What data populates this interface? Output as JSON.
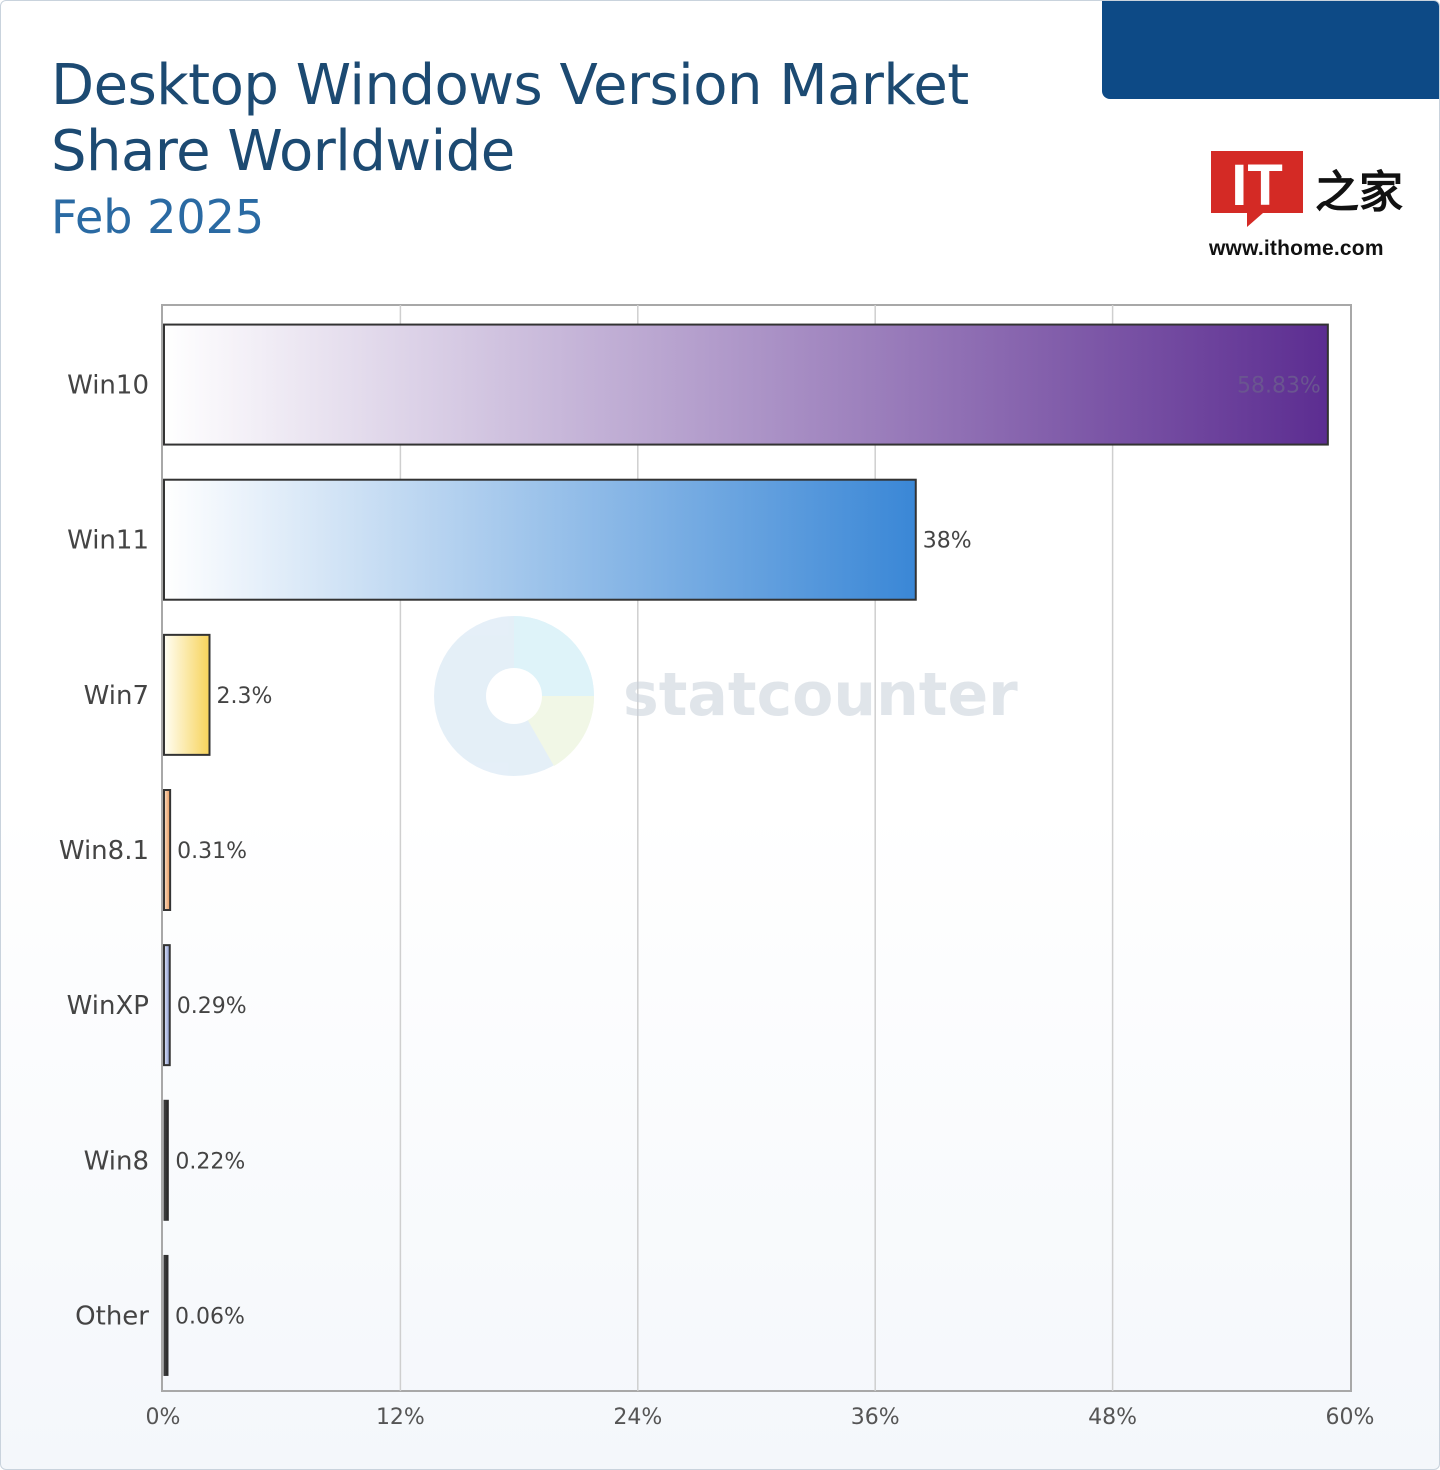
{
  "header": {
    "title": "Desktop Windows Version Market Share Worldwide",
    "subtitle": "Feb 2025"
  },
  "logo": {
    "mark_text": "IT",
    "mark_suffix": "之家",
    "url": "www.ithome.com"
  },
  "watermark": {
    "text": "statcounter"
  },
  "chart_data": {
    "type": "bar",
    "orientation": "horizontal",
    "categories": [
      "Win10",
      "Win11",
      "Win7",
      "Win8.1",
      "WinXP",
      "Win8",
      "Other"
    ],
    "values": [
      58.83,
      38,
      2.3,
      0.31,
      0.29,
      0.22,
      0.06
    ],
    "value_labels": [
      "58.83%",
      "38%",
      "2.3%",
      "0.31%",
      "0.29%",
      "0.22%",
      "0.06%"
    ],
    "xlim": [
      0,
      60
    ],
    "x_ticks": [
      0,
      12,
      24,
      36,
      48,
      60
    ],
    "x_tick_labels": [
      "0%",
      "12%",
      "24%",
      "36%",
      "48%",
      "60%"
    ],
    "grid": true,
    "colors": [
      "#5c2d91",
      "#3a87d6",
      "#f7d35a",
      "#e8955a",
      "#8a9ad0",
      "#222222",
      "#222222"
    ]
  }
}
